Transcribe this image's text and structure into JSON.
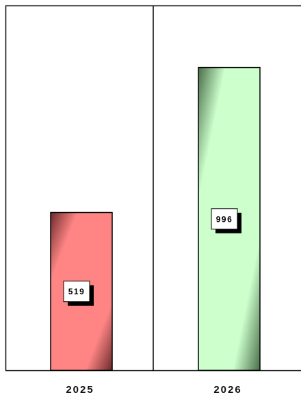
{
  "chart_data": {
    "type": "bar",
    "categories": [
      "2025",
      "2026"
    ],
    "values": [
      519,
      996
    ],
    "title": "",
    "xlabel": "",
    "ylabel": "",
    "ylim": [
      0,
      1200
    ],
    "grid": false,
    "legend": "none",
    "data_labels": [
      "519",
      "996"
    ],
    "colors": [
      {
        "light": "#ff8585",
        "dark": "#6b2a2a"
      },
      {
        "light": "#ccffcc",
        "dark": "#4a6e4a"
      }
    ]
  }
}
